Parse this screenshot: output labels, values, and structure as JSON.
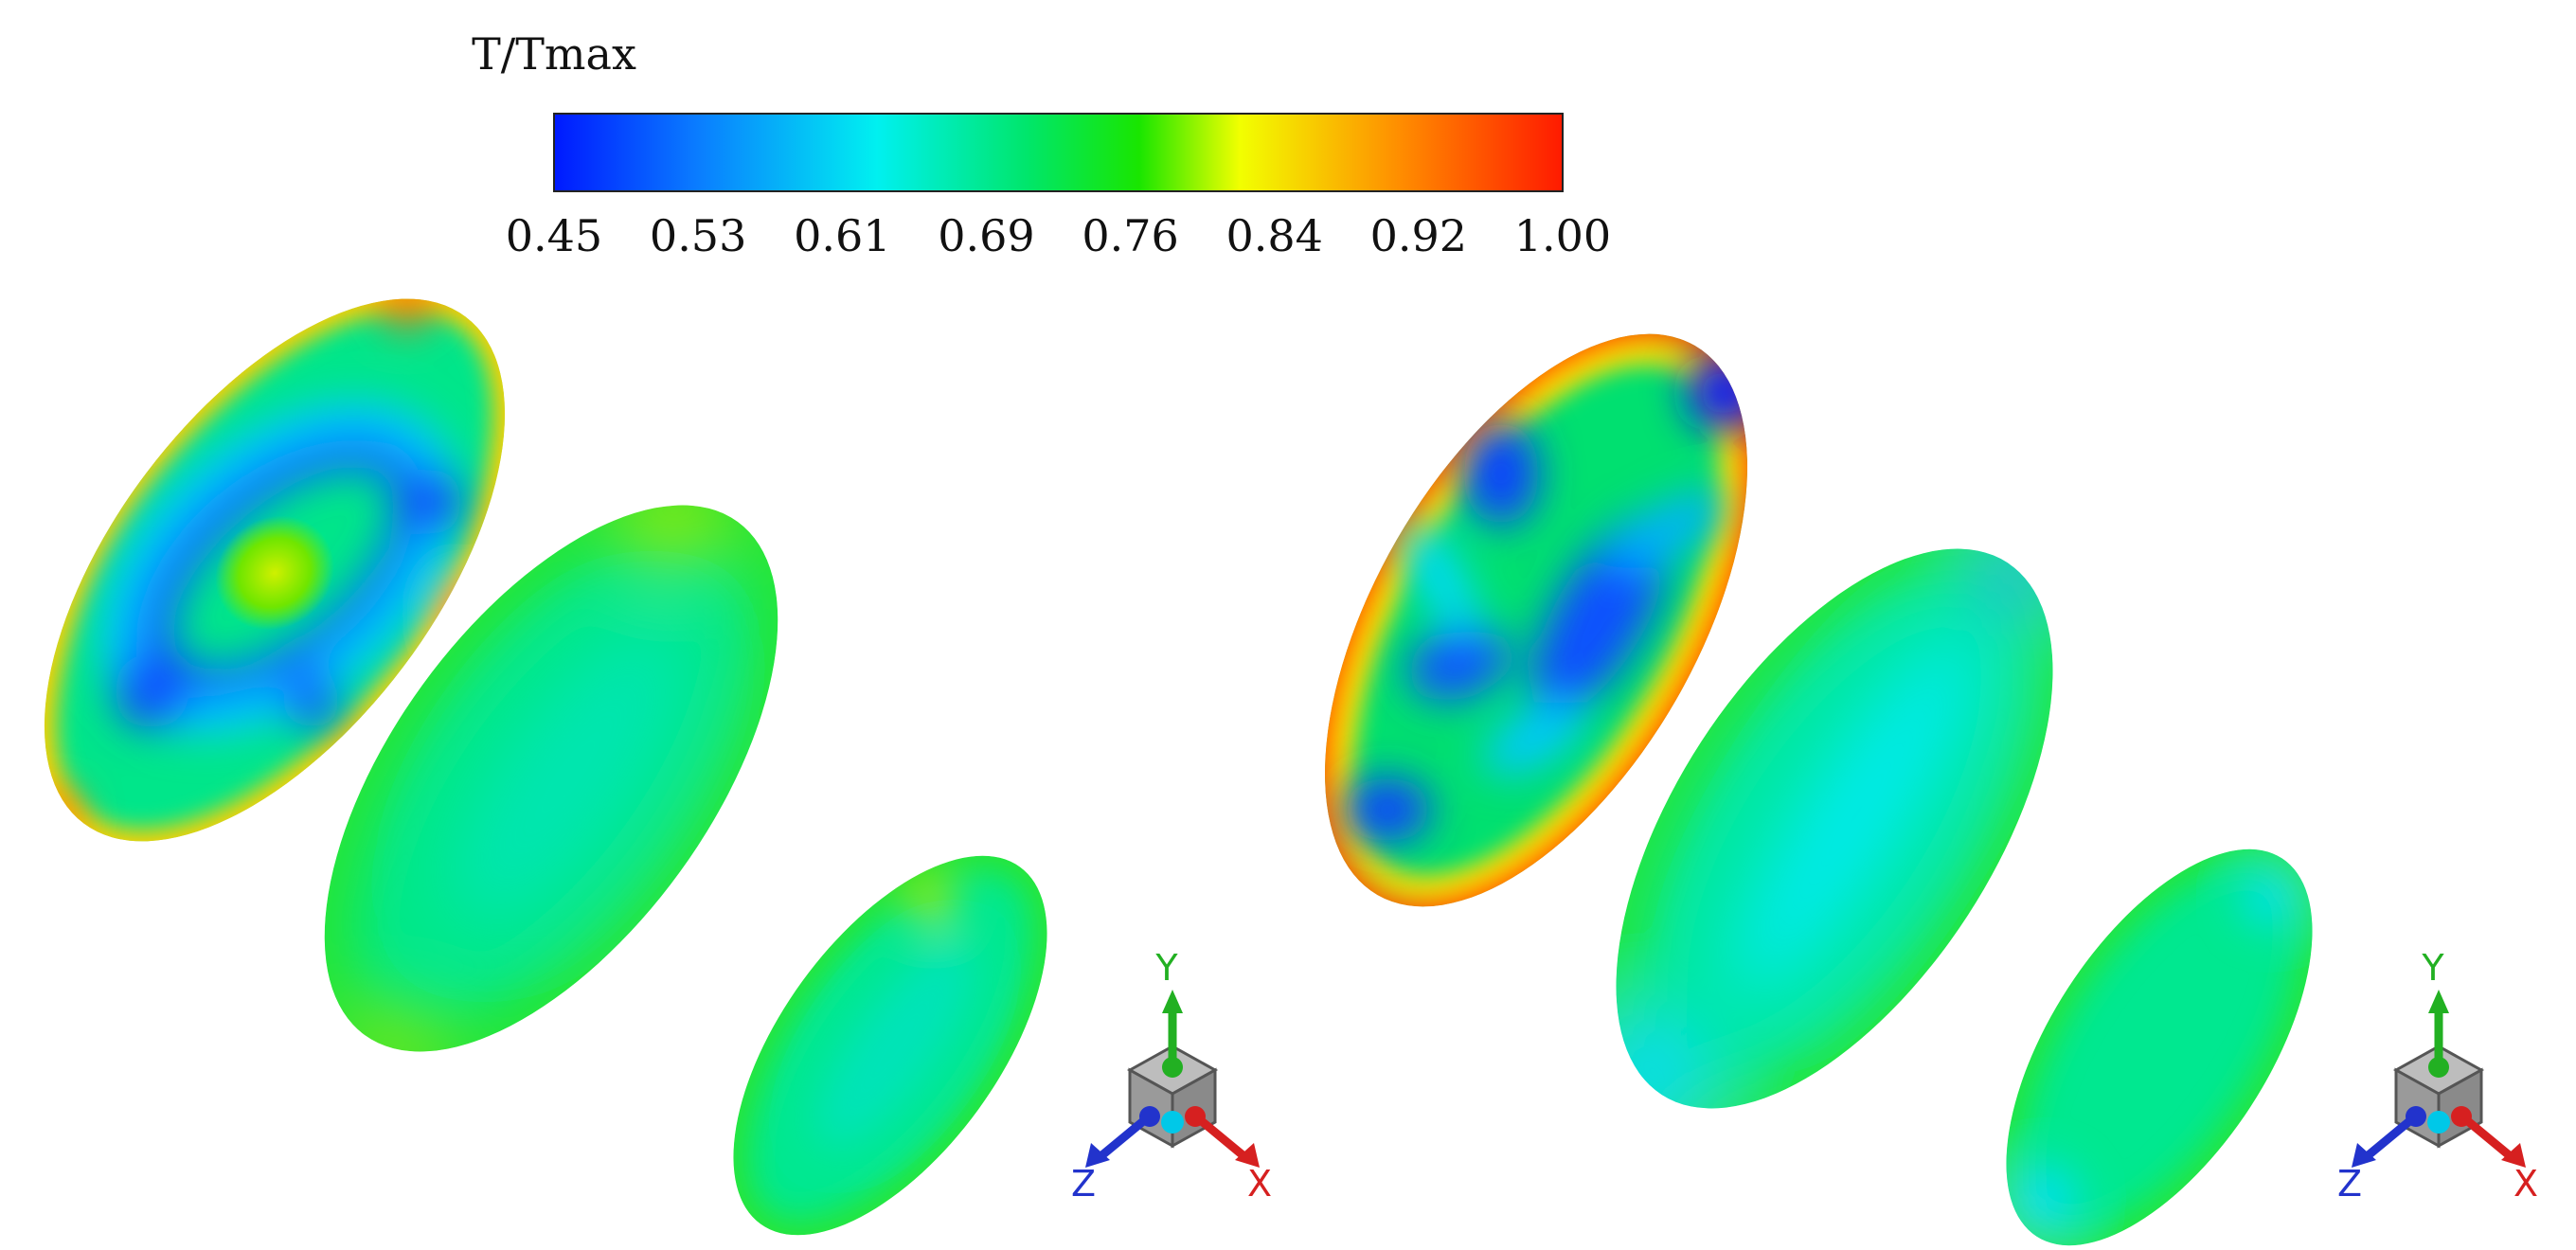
{
  "colorbar": {
    "title": "T/Tmax",
    "ticks": [
      "0.45",
      "0.53",
      "0.61",
      "0.69",
      "0.76",
      "0.84",
      "0.92",
      "1.00"
    ],
    "stops": [
      "#0019ff",
      "#0a7bff",
      "#00f0f0",
      "#00e66a",
      "#19e600",
      "#f2ff00",
      "#ff8c00",
      "#ff1a00"
    ]
  },
  "panels": [
    {
      "name": "left-case",
      "axis_triad": {
        "x_label": "X",
        "y_label": "Y",
        "z_label": "Z"
      }
    },
    {
      "name": "right-case",
      "axis_triad": {
        "x_label": "X",
        "y_label": "Y",
        "z_label": "Z"
      }
    }
  ],
  "colors": {
    "x_axis": "#d62020",
    "y_axis": "#22b022",
    "z_axis": "#2233cc"
  }
}
